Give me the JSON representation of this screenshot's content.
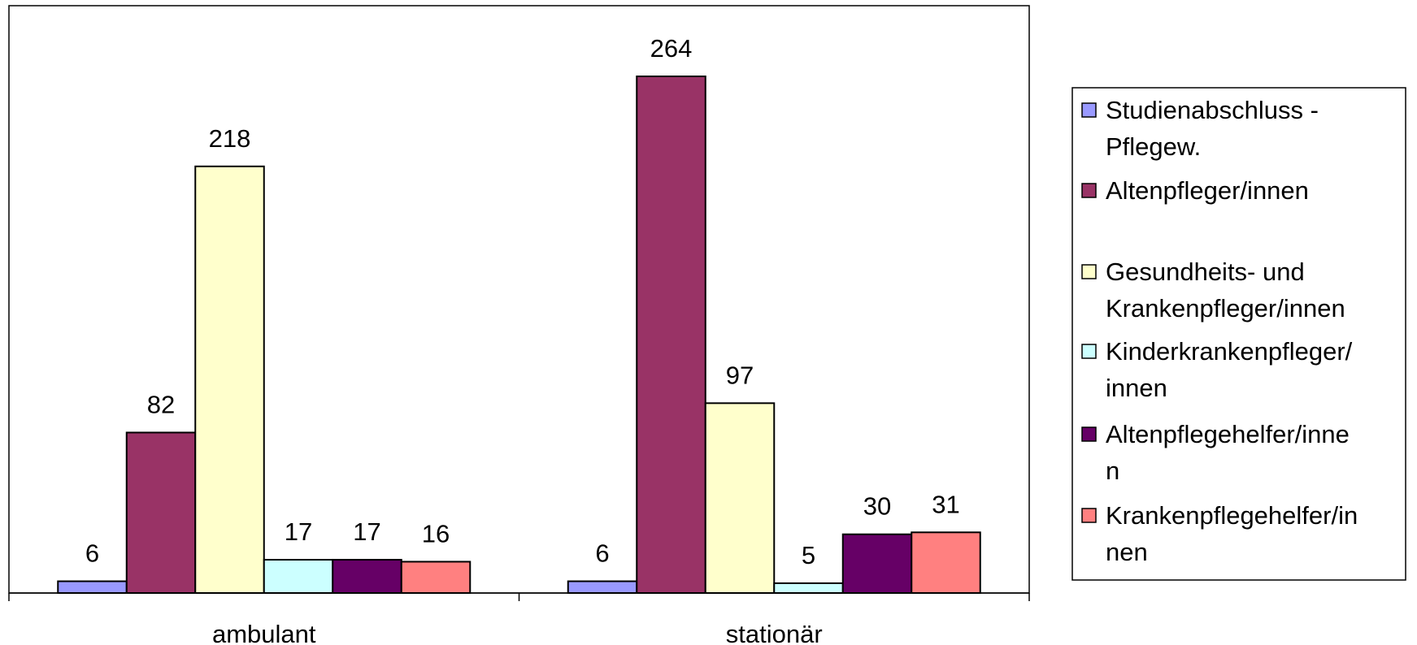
{
  "chart_data": {
    "type": "bar",
    "title": "",
    "xlabel": "",
    "ylabel": "",
    "ylim": [
      0,
      290
    ],
    "grid": false,
    "legend_position": "right",
    "categories": [
      "ambulant",
      "stationär"
    ],
    "series": [
      {
        "name": "Studienabschluss - Pflegew.",
        "legend_lines": [
          "Studienabschluss -",
          "Pflegew."
        ],
        "color": "#9999FF",
        "values": [
          6,
          6
        ]
      },
      {
        "name": "Altenpfleger/innen",
        "legend_lines": [
          "Altenpfleger/innen"
        ],
        "color": "#993366",
        "values": [
          82,
          264
        ]
      },
      {
        "name": "Gesundheits- und Krankenpfleger/innen",
        "legend_lines": [
          "Gesundheits- und",
          "Krankenpfleger/innen"
        ],
        "color": "#FFFFCC",
        "values": [
          218,
          97
        ]
      },
      {
        "name": "Kinderkrankenpfleger/innen",
        "legend_lines": [
          "Kinderkrankenpfleger/",
          "innen"
        ],
        "color": "#CCFFFF",
        "values": [
          17,
          5
        ]
      },
      {
        "name": "Altenpflegehelfer/innen",
        "legend_lines": [
          "Altenpflegehelfer/inne",
          "n"
        ],
        "color": "#660066",
        "values": [
          17,
          30
        ]
      },
      {
        "name": "Krankenpflegehelfer/innen",
        "legend_lines": [
          "Krankenpflegehelfer/in",
          "nen"
        ],
        "color": "#FF8080",
        "values": [
          16,
          31
        ]
      }
    ]
  }
}
